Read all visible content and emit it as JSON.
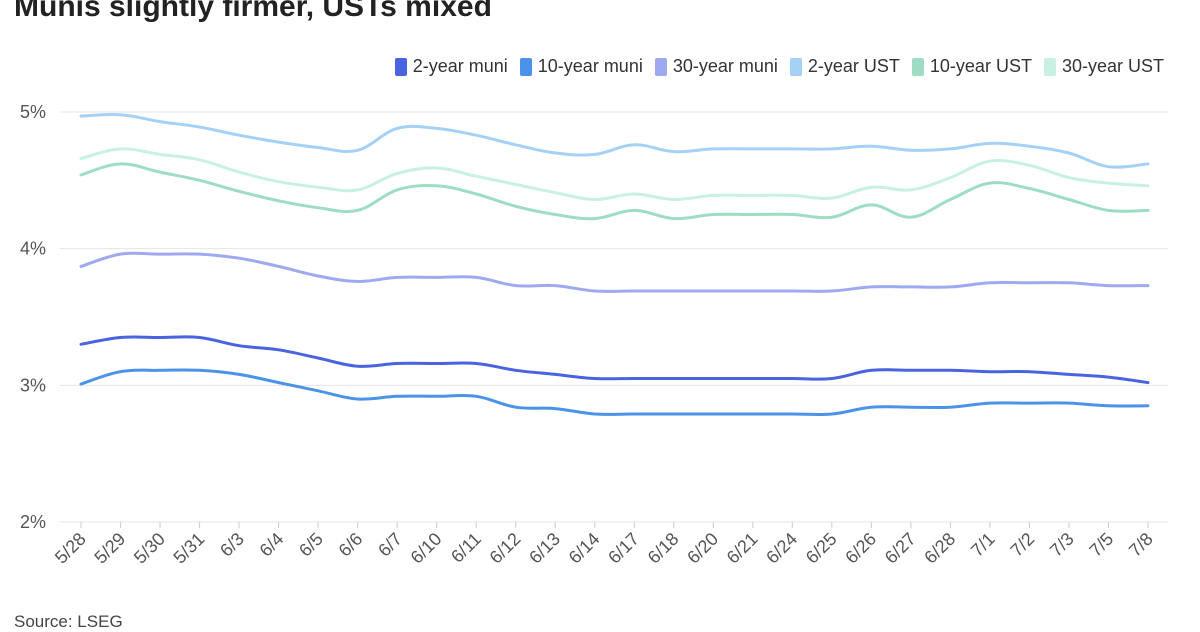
{
  "chart_data": {
    "type": "line",
    "title": "Munis slightly firmer, USTs mixed",
    "source": "Source: LSEG",
    "xlabel": "",
    "ylabel": "",
    "ylim": [
      2,
      5
    ],
    "yticks": [
      {
        "value": 2,
        "label": "2%"
      },
      {
        "value": 3,
        "label": "3%"
      },
      {
        "value": 4,
        "label": "4%"
      },
      {
        "value": 5,
        "label": "5%"
      }
    ],
    "grid": true,
    "legend_position": "top-right",
    "categories": [
      "5/28",
      "5/29",
      "5/30",
      "5/31",
      "6/3",
      "6/4",
      "6/5",
      "6/6",
      "6/7",
      "6/10",
      "6/11",
      "6/12",
      "6/13",
      "6/14",
      "6/17",
      "6/18",
      "6/20",
      "6/21",
      "6/24",
      "6/25",
      "6/26",
      "6/27",
      "6/28",
      "7/1",
      "7/2",
      "7/3",
      "7/5",
      "7/8"
    ],
    "series": [
      {
        "name": "2-year muni",
        "color": "#4a63e0",
        "values": [
          3.3,
          3.35,
          3.35,
          3.35,
          3.29,
          3.26,
          3.2,
          3.14,
          3.16,
          3.16,
          3.16,
          3.11,
          3.08,
          3.05,
          3.05,
          3.05,
          3.05,
          3.05,
          3.05,
          3.05,
          3.11,
          3.11,
          3.11,
          3.1,
          3.1,
          3.08,
          3.06,
          3.02
        ]
      },
      {
        "name": "10-year muni",
        "color": "#4b93e8",
        "values": [
          3.01,
          3.1,
          3.11,
          3.11,
          3.08,
          3.02,
          2.96,
          2.9,
          2.92,
          2.92,
          2.92,
          2.84,
          2.83,
          2.79,
          2.79,
          2.79,
          2.79,
          2.79,
          2.79,
          2.79,
          2.84,
          2.84,
          2.84,
          2.87,
          2.87,
          2.87,
          2.85,
          2.85
        ]
      },
      {
        "name": "30-year muni",
        "color": "#9daaf0",
        "values": [
          3.87,
          3.96,
          3.96,
          3.96,
          3.93,
          3.87,
          3.8,
          3.76,
          3.79,
          3.79,
          3.79,
          3.73,
          3.73,
          3.69,
          3.69,
          3.69,
          3.69,
          3.69,
          3.69,
          3.69,
          3.72,
          3.72,
          3.72,
          3.75,
          3.75,
          3.75,
          3.73,
          3.73
        ]
      },
      {
        "name": "2-year UST",
        "color": "#a6d1f7",
        "values": [
          4.97,
          4.98,
          4.93,
          4.89,
          4.83,
          4.78,
          4.74,
          4.72,
          4.88,
          4.88,
          4.83,
          4.76,
          4.7,
          4.69,
          4.76,
          4.71,
          4.73,
          4.73,
          4.73,
          4.73,
          4.75,
          4.72,
          4.73,
          4.77,
          4.75,
          4.7,
          4.6,
          4.62
        ]
      },
      {
        "name": "10-year UST",
        "color": "#9fdcc4",
        "values": [
          4.54,
          4.62,
          4.56,
          4.5,
          4.42,
          4.35,
          4.3,
          4.28,
          4.43,
          4.46,
          4.4,
          4.31,
          4.25,
          4.22,
          4.28,
          4.22,
          4.25,
          4.25,
          4.25,
          4.23,
          4.32,
          4.23,
          4.36,
          4.48,
          4.44,
          4.36,
          4.28,
          4.28
        ]
      },
      {
        "name": "30-year UST",
        "color": "#c8f1e1",
        "values": [
          4.66,
          4.73,
          4.69,
          4.65,
          4.56,
          4.49,
          4.45,
          4.43,
          4.55,
          4.59,
          4.53,
          4.47,
          4.41,
          4.36,
          4.4,
          4.36,
          4.39,
          4.39,
          4.39,
          4.37,
          4.45,
          4.43,
          4.52,
          4.64,
          4.61,
          4.52,
          4.48,
          4.46
        ]
      }
    ]
  }
}
